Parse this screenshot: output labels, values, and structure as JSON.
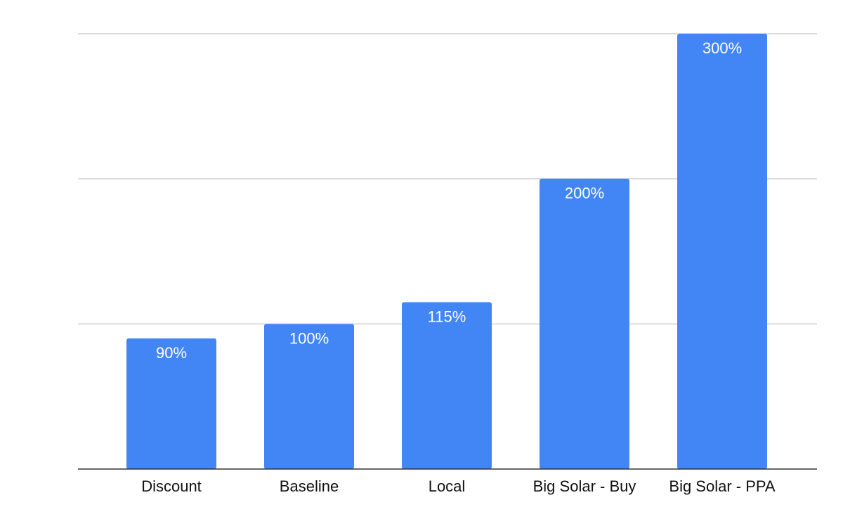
{
  "chart_data": {
    "type": "bar",
    "categories": [
      "Discount",
      "Baseline",
      "Local",
      "Big Solar - Buy",
      "Big Solar - PPA"
    ],
    "values": [
      90,
      100,
      115,
      200,
      300
    ],
    "data_labels": [
      "90%",
      "100%",
      "115%",
      "200%",
      "300%"
    ],
    "title": "",
    "xlabel": "",
    "ylabel": "",
    "ylim": [
      0,
      300
    ],
    "y_gridlines": [
      100,
      200,
      300
    ],
    "y_tick_labels_shown": false,
    "grid": true,
    "legend": "none",
    "bar_color": "#4285f4",
    "data_label_color": "#ffffff"
  }
}
